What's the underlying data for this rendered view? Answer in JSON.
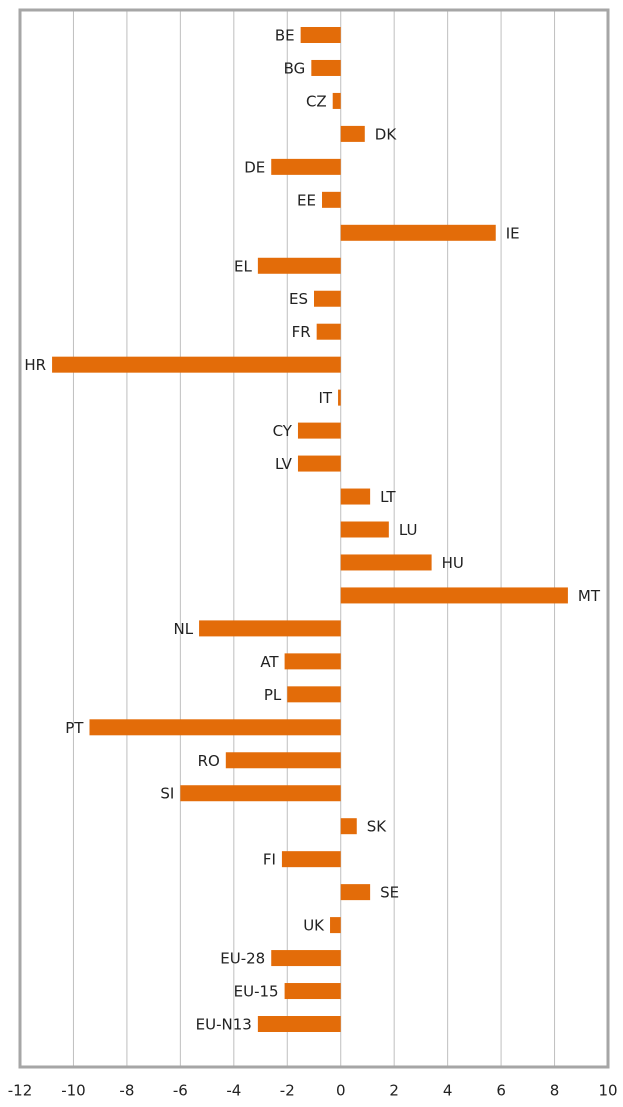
{
  "chart_data": {
    "type": "barh",
    "color": "#e36c09",
    "grid": true,
    "categories": [
      "BE",
      "BG",
      "CZ",
      "DK",
      "DE",
      "EE",
      "IE",
      "EL",
      "ES",
      "FR",
      "HR",
      "IT",
      "CY",
      "LV",
      "LT",
      "LU",
      "HU",
      "MT",
      "NL",
      "AT",
      "PL",
      "PT",
      "RO",
      "SI",
      "SK",
      "FI",
      "SE",
      "UK",
      "EU-28",
      "EU-15",
      "EU-N13"
    ],
    "values": [
      -1.5,
      -1.1,
      -0.3,
      0.9,
      -2.6,
      -0.7,
      5.8,
      -3.1,
      -1.0,
      -0.9,
      -10.8,
      -0.1,
      -1.6,
      -1.6,
      1.1,
      1.8,
      3.4,
      8.5,
      -5.3,
      -2.1,
      -2.0,
      -9.4,
      -4.3,
      -6.0,
      0.6,
      -2.2,
      1.1,
      -0.4,
      -2.6,
      -2.1,
      -3.1
    ],
    "xlim": [
      -12,
      10
    ],
    "xticks": [
      -12,
      -10,
      -8,
      -6,
      -4,
      -2,
      0,
      2,
      4,
      6,
      8,
      10
    ]
  }
}
